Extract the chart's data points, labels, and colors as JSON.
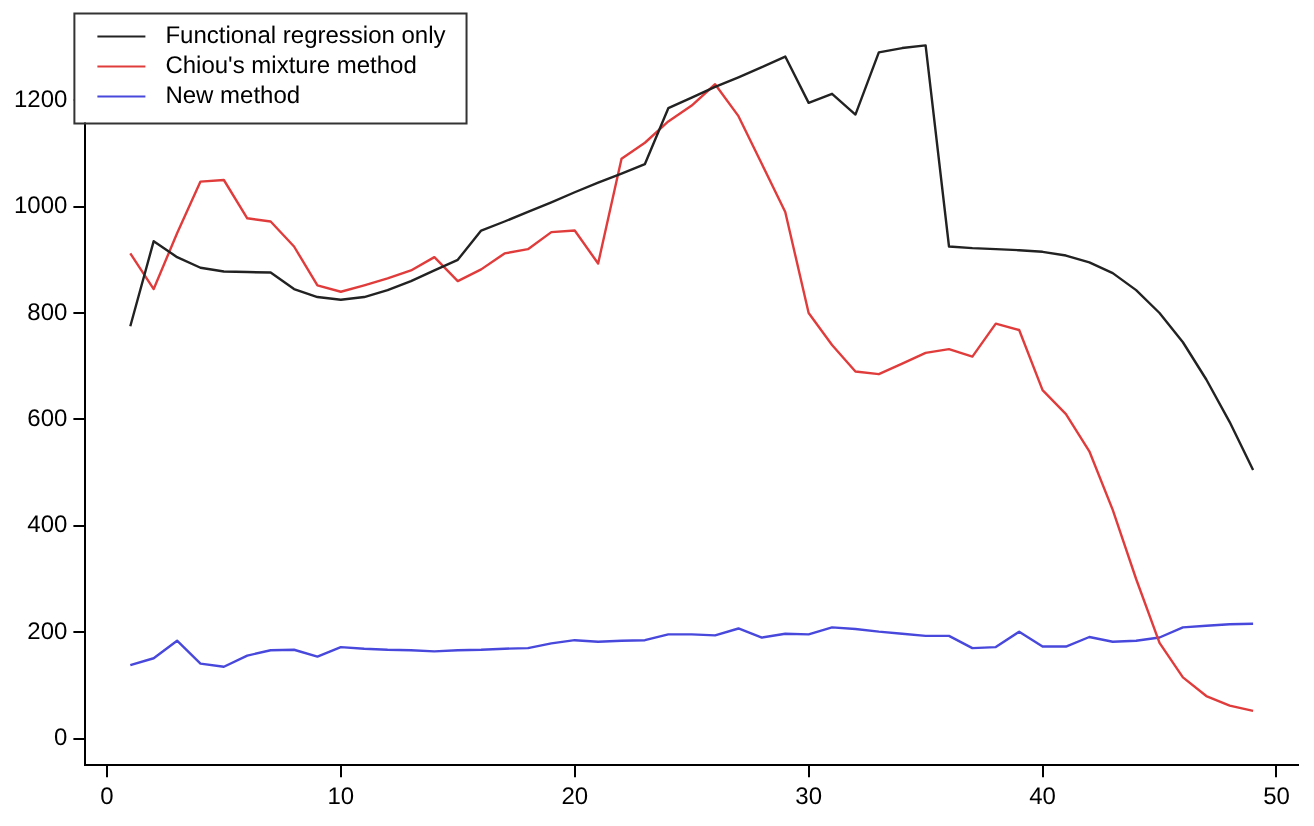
{
  "chart_data": {
    "type": "line",
    "x": [
      1,
      2,
      3,
      4,
      5,
      6,
      7,
      8,
      9,
      10,
      11,
      12,
      13,
      14,
      15,
      16,
      17,
      18,
      19,
      20,
      21,
      22,
      23,
      24,
      25,
      26,
      27,
      28,
      29,
      30,
      31,
      32,
      33,
      34,
      35,
      36,
      37,
      38,
      39,
      40,
      41,
      42,
      43,
      44,
      45,
      46,
      47,
      48,
      49
    ],
    "series": [
      {
        "name": "Functional regression only",
        "color": "#222222",
        "values": [
          775,
          935,
          905,
          885,
          878,
          877,
          876,
          845,
          830,
          825,
          830,
          843,
          860,
          880,
          900,
          955,
          972,
          990,
          1008,
          1027,
          1045,
          1062,
          1080,
          1185,
          1205,
          1225,
          1243,
          1262,
          1282,
          1195,
          1212,
          1173,
          1290,
          1298,
          1303,
          925,
          922,
          920,
          918,
          915,
          908,
          895,
          875,
          843,
          800,
          745,
          675,
          595,
          505
        ]
      },
      {
        "name": "Chiou's mixture method",
        "color": "#e03c3c",
        "values": [
          912,
          845,
          950,
          1047,
          1050,
          978,
          972,
          925,
          852,
          840,
          852,
          865,
          880,
          905,
          860,
          882,
          912,
          920,
          952,
          955,
          893,
          1090,
          1120,
          1160,
          1190,
          1230,
          1170,
          1080,
          990,
          800,
          740,
          690,
          685,
          705,
          725,
          732,
          718,
          780,
          768,
          655,
          610,
          540,
          430,
          300,
          180,
          115,
          80,
          62,
          52
        ]
      },
      {
        "name": "New method",
        "color": "#4848dc",
        "values": [
          138,
          151,
          184,
          141,
          135,
          156,
          166,
          167,
          154,
          172,
          169,
          167,
          166,
          164,
          166,
          167,
          169,
          170,
          179,
          185,
          182,
          184,
          185,
          196,
          196,
          194,
          207,
          190,
          197,
          196,
          209,
          206,
          201,
          197,
          193,
          193,
          170,
          172,
          201,
          173,
          173,
          191,
          182,
          184,
          190,
          209,
          212,
          215,
          216
        ]
      }
    ],
    "xlim": [
      -0.92,
      50.92
    ],
    "xticks": [
      0,
      10,
      20,
      30,
      40,
      50
    ],
    "ylim": [
      -50,
      1350
    ],
    "yticks": [
      0,
      200,
      400,
      600,
      800,
      1000,
      1200
    ],
    "legend": "top left",
    "grid": false,
    "marker": "none",
    "line_style": "solid"
  }
}
